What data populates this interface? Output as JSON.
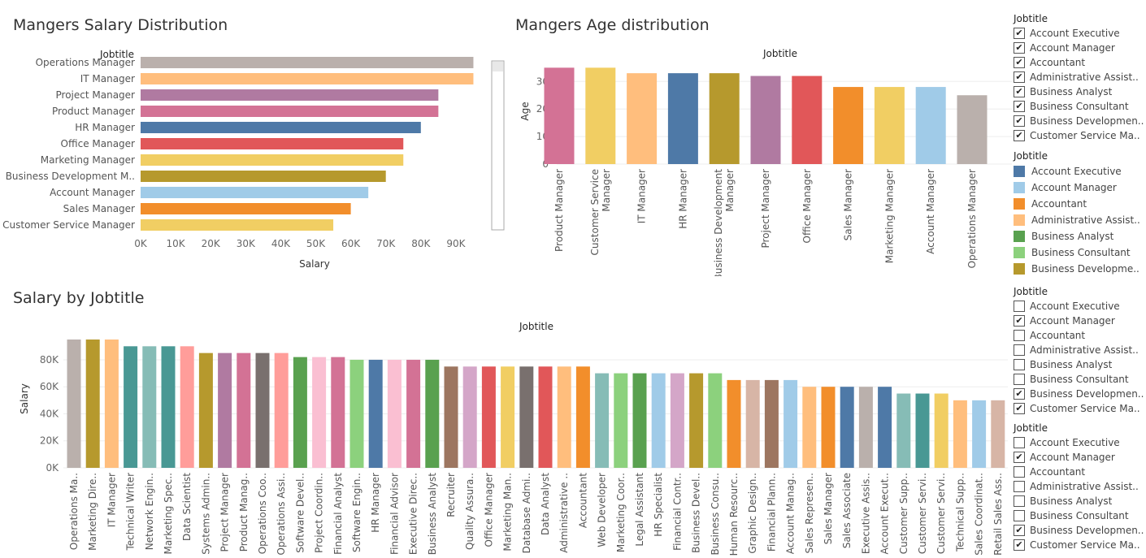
{
  "titles": {
    "salary_dist": "Mangers Salary Distribution",
    "age_dist": "Mangers Age distribution",
    "salary_by_job": "Salary by Jobtitle"
  },
  "chart_data": [
    {
      "id": "salary_dist",
      "type": "bar",
      "orientation": "horizontal",
      "title": "Mangers Salary Distribution",
      "header": "Jobtitle",
      "xlabel": "Salary",
      "xlim": [
        0,
        100000
      ],
      "ticks": [
        "0K",
        "10K",
        "20K",
        "30K",
        "40K",
        "50K",
        "60K",
        "70K",
        "80K",
        "90K"
      ],
      "categories": [
        "Operations Manager",
        "IT Manager",
        "Project Manager",
        "Product Manager",
        "HR Manager",
        "Office Manager",
        "Marketing Manager",
        "Business Development M..",
        "Account Manager",
        "Sales Manager",
        "Customer Service Manager"
      ],
      "values": [
        95000,
        95000,
        85000,
        85000,
        80000,
        75000,
        75000,
        70000,
        65000,
        60000,
        55000
      ],
      "colors": [
        "#bab0ac",
        "#ffbe7d",
        "#b07aa1",
        "#d37295",
        "#4e79a7",
        "#e15759",
        "#f1ce63",
        "#b6992d",
        "#a0cbe8",
        "#f28e2b",
        "#f1ce63"
      ]
    },
    {
      "id": "age_dist",
      "type": "bar",
      "title": "Mangers Age distribution",
      "header": "Jobtitle",
      "ylabel": "Age",
      "ylim": [
        0,
        36
      ],
      "ticks": [
        "0",
        "10",
        "20",
        "30"
      ],
      "categories": [
        "Product Manager",
        "Customer Service Manager",
        "IT Manager",
        "HR Manager",
        "Business Development Manager",
        "Project Manager",
        "Office Manager",
        "Sales Manager",
        "Marketing Manager",
        "Account Manager",
        "Operations Manager"
      ],
      "label_lines": [
        [
          "Product Manager"
        ],
        [
          "Customer Service",
          "Manager"
        ],
        [
          "IT Manager"
        ],
        [
          "HR Manager"
        ],
        [
          "Business Development",
          "Manager"
        ],
        [
          "Project Manager"
        ],
        [
          "Office Manager"
        ],
        [
          "Sales Manager"
        ],
        [
          "Marketing Manager"
        ],
        [
          "Account Manager"
        ],
        [
          "Operations Manager"
        ]
      ],
      "values": [
        35,
        35,
        33,
        33,
        33,
        32,
        32,
        28,
        28,
        28,
        25
      ],
      "colors": [
        "#d37295",
        "#f1ce63",
        "#ffbe7d",
        "#4e79a7",
        "#b6992d",
        "#b07aa1",
        "#e15759",
        "#f28e2b",
        "#f1ce63",
        "#a0cbe8",
        "#bab0ac"
      ]
    },
    {
      "id": "salary_by_job",
      "type": "bar",
      "title": "Salary by Jobtitle",
      "header": "Jobtitle",
      "ylabel": "Salary",
      "ylim": [
        0,
        100000
      ],
      "ticks": [
        "0K",
        "20K",
        "40K",
        "60K",
        "80K"
      ],
      "categories": [
        "Operations Ma..",
        "Marketing Dire..",
        "IT Manager",
        "Technical Writer",
        "Network Engin..",
        "Marketing Spec..",
        "Data Scientist",
        "Systems Admin..",
        "Project Manager",
        "Product Manag..",
        "Operations Coo..",
        "Operations Assi..",
        "Software Devel..",
        "Project Coordin..",
        "Financial Analyst",
        "Software Engin..",
        "HR Manager",
        "Financial Advisor",
        "Executive Direc..",
        "Business Analyst",
        "Recruiter",
        "Quality Assura..",
        "Office Manager",
        "Marketing Man..",
        "Database Admi..",
        "Data Analyst",
        "Administrative ..",
        "Accountant",
        "Web Developer",
        "Marketing Coor..",
        "Legal Assistant",
        "HR Specialist",
        "Financial Contr..",
        "Business Devel..",
        "Business Consu..",
        "Human Resourc..",
        "Graphic Design..",
        "Financial Plann..",
        "Account Manag..",
        "Sales Represen..",
        "Sales Manager",
        "Sales Associate",
        "Executive Assis..",
        "Account Execut..",
        "Customer Supp..",
        "Customer Servi..",
        "Customer Servi..",
        "Technical Supp..",
        "Sales Coordinat..",
        "Retail Sales Ass.."
      ],
      "values": [
        95000,
        95000,
        95000,
        90000,
        90000,
        90000,
        90000,
        85000,
        85000,
        85000,
        85000,
        85000,
        82000,
        82000,
        82000,
        80000,
        80000,
        80000,
        80000,
        80000,
        75000,
        75000,
        75000,
        75000,
        75000,
        75000,
        75000,
        75000,
        70000,
        70000,
        70000,
        70000,
        70000,
        70000,
        70000,
        65000,
        65000,
        65000,
        65000,
        60000,
        60000,
        60000,
        60000,
        60000,
        55000,
        55000,
        55000,
        50000,
        50000,
        50000
      ],
      "colors": [
        "#bab0ac",
        "#b6992d",
        "#ffbe7d",
        "#499894",
        "#86bcb6",
        "#499894",
        "#ff9d9a",
        "#b6992d",
        "#b07aa1",
        "#d37295",
        "#79706e",
        "#ff9d9a",
        "#59a14f",
        "#fabfd2",
        "#d37295",
        "#8cd17d",
        "#4e79a7",
        "#fabfd2",
        "#d37295",
        "#59a14f",
        "#9d7660",
        "#d4a6c8",
        "#e15759",
        "#f1ce63",
        "#79706e",
        "#e15759",
        "#ffbe7d",
        "#f28e2b",
        "#86bcb6",
        "#8cd17d",
        "#59a14f",
        "#a0cbe8",
        "#d4a6c8",
        "#b6992d",
        "#8cd17d",
        "#f28e2b",
        "#d7b5a6",
        "#9d7660",
        "#a0cbe8",
        "#ffbe7d",
        "#f28e2b",
        "#4e79a7",
        "#bab0ac",
        "#4e79a7",
        "#86bcb6",
        "#499894",
        "#f1ce63",
        "#ffbe7d",
        "#a0cbe8",
        "#d7b5a6"
      ]
    }
  ],
  "filters": [
    {
      "header": "Jobtitle",
      "items": [
        {
          "label": "Account Executive",
          "checked": true
        },
        {
          "label": "Account Manager",
          "checked": true
        },
        {
          "label": "Accountant",
          "checked": true
        },
        {
          "label": "Administrative Assist..",
          "checked": true
        },
        {
          "label": "Business Analyst",
          "checked": true
        },
        {
          "label": "Business Consultant",
          "checked": true
        },
        {
          "label": "Business Developmen..",
          "checked": true
        },
        {
          "label": "Customer Service Ma..",
          "checked": true
        }
      ]
    },
    {
      "header": "Jobtitle",
      "items": [
        {
          "label": "Account Executive",
          "checked": false
        },
        {
          "label": "Account Manager",
          "checked": true
        },
        {
          "label": "Accountant",
          "checked": false
        },
        {
          "label": "Administrative Assist..",
          "checked": false
        },
        {
          "label": "Business Analyst",
          "checked": false
        },
        {
          "label": "Business Consultant",
          "checked": false
        },
        {
          "label": "Business Developmen..",
          "checked": true
        },
        {
          "label": "Customer Service Ma..",
          "checked": true
        }
      ]
    },
    {
      "header": "Jobtitle",
      "items": [
        {
          "label": "Account Executive",
          "checked": false
        },
        {
          "label": "Account Manager",
          "checked": true
        },
        {
          "label": "Accountant",
          "checked": false
        },
        {
          "label": "Administrative Assist..",
          "checked": false
        },
        {
          "label": "Business Analyst",
          "checked": false
        },
        {
          "label": "Business Consultant",
          "checked": false
        },
        {
          "label": "Business Developmen..",
          "checked": true
        },
        {
          "label": "Customer Service Ma..",
          "checked": true
        }
      ]
    }
  ],
  "legend": {
    "header": "Jobtitle",
    "items": [
      {
        "label": "Account Executive",
        "color": "#4e79a7"
      },
      {
        "label": "Account Manager",
        "color": "#a0cbe8"
      },
      {
        "label": "Accountant",
        "color": "#f28e2b"
      },
      {
        "label": "Administrative Assist..",
        "color": "#ffbe7d"
      },
      {
        "label": "Business Analyst",
        "color": "#59a14f"
      },
      {
        "label": "Business Consultant",
        "color": "#8cd17d"
      },
      {
        "label": "Business Developme..",
        "color": "#b6992d"
      }
    ]
  },
  "check_glyph": "✔"
}
